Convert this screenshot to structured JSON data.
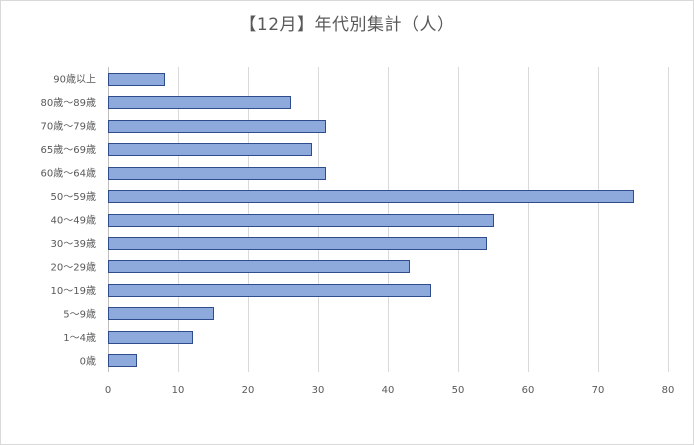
{
  "chart_data": {
    "type": "bar",
    "orientation": "horizontal",
    "title": "【12月】年代別集計（人）",
    "categories": [
      "90歳以上",
      "80歳～89歳",
      "70歳～79歳",
      "65歳～69歳",
      "60歳～64歳",
      "50～59歳",
      "40～49歳",
      "30～39歳",
      "20～29歳",
      "10～19歳",
      "5～9歳",
      "1～4歳",
      "0歳"
    ],
    "values": [
      8,
      26,
      31,
      29,
      31,
      75,
      55,
      54,
      43,
      46,
      15,
      12,
      4
    ],
    "xlim": [
      0,
      80
    ],
    "xticks": [
      0,
      10,
      20,
      30,
      40,
      50,
      60,
      70,
      80
    ],
    "grid": true,
    "legend": "none",
    "colors": {
      "bar_fill": "#8ea9db",
      "bar_stroke": "#2f4d8c",
      "grid": "#d9d9d9",
      "text": "#595959"
    }
  }
}
